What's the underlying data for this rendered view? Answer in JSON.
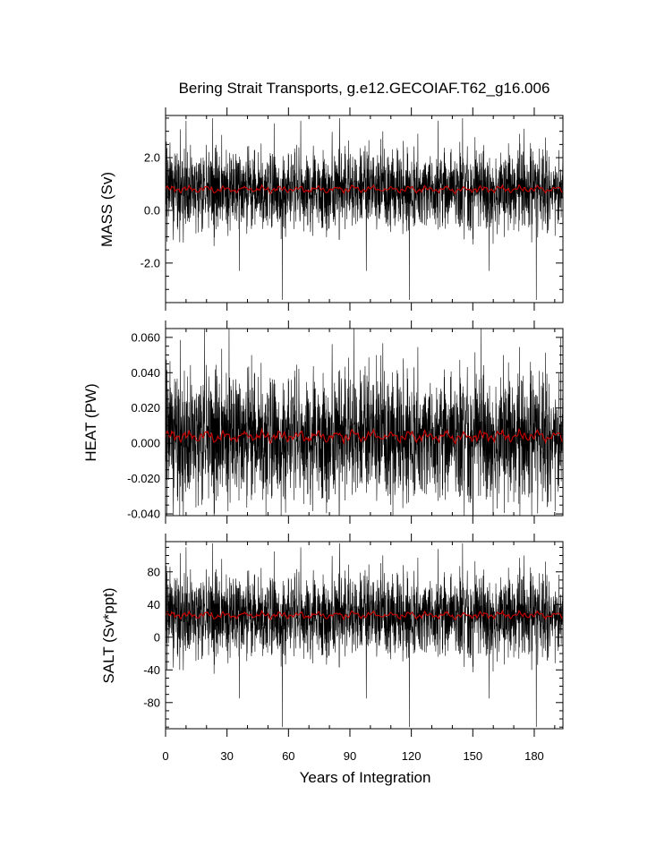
{
  "chart_data": [
    {
      "type": "line",
      "title": "Bering Strait Transports, g.e12.GECOIAF.T62_g16.006",
      "ylabel": "MASS (Sv)",
      "xlabel": "",
      "xlim": [
        0,
        194
      ],
      "ylim": [
        -3.5,
        3.6
      ],
      "yticks": [
        2.0,
        0.0,
        -2.0
      ],
      "ytick_labels": [
        "2.0",
        "0.0",
        "-2.0"
      ],
      "series": [
        {
          "color": "#000000",
          "kind": "monthly",
          "mean": 0.8,
          "amplitude": 0.75,
          "pos_spikes": [
            [
              10,
              3.4
            ],
            [
              23,
              3.5
            ],
            [
              53,
              3.3
            ],
            [
              66,
              3.4
            ],
            [
              85,
              3.5
            ],
            [
              133,
              3.4
            ],
            [
              145,
              3.5
            ],
            [
              175,
              3.1
            ]
          ],
          "neg_spikes": [
            [
              36,
              -2.3
            ],
            [
              57,
              -3.4
            ],
            [
              98,
              -2.3
            ],
            [
              119,
              -3.4
            ],
            [
              158,
              -2.3
            ],
            [
              181,
              -3.4
            ]
          ]
        },
        {
          "color": "#cc0000",
          "kind": "annual-mean",
          "mean": 0.8,
          "amplitude": 0.12
        }
      ]
    },
    {
      "type": "line",
      "ylabel": "HEAT (PW)",
      "xlabel": "",
      "xlim": [
        0,
        194
      ],
      "ylim": [
        -0.041,
        0.065
      ],
      "yticks": [
        0.06,
        0.04,
        0.02,
        0.0,
        -0.02,
        -0.04
      ],
      "ytick_labels": [
        "0.060",
        "0.040",
        "0.020",
        "0.000",
        "-0.020",
        "-0.040"
      ],
      "series": [
        {
          "color": "#000000",
          "kind": "monthly",
          "mean": 0.004,
          "amplitude": 0.018,
          "pos_spikes": [
            [
              19,
              0.065
            ],
            [
              31,
              0.065
            ],
            [
              42,
              0.05
            ],
            [
              92,
              0.065
            ],
            [
              103,
              0.05
            ],
            [
              154,
              0.065
            ],
            [
              165,
              0.05
            ],
            [
              193,
              0.06
            ]
          ],
          "neg_spikes": [
            [
              8,
              -0.033
            ],
            [
              49,
              -0.041
            ],
            [
              111,
              -0.041
            ],
            [
              173,
              -0.041
            ],
            [
              188,
              -0.033
            ]
          ]
        },
        {
          "color": "#cc0000",
          "kind": "annual-mean",
          "mean": 0.004,
          "amplitude": 0.003
        }
      ]
    },
    {
      "type": "line",
      "ylabel": "SALT (Sv*ppt)",
      "xlabel": "Years of Integration",
      "xlim": [
        0,
        194
      ],
      "ylim": [
        -112,
        117
      ],
      "xticks": [
        0,
        30,
        60,
        90,
        120,
        150,
        180
      ],
      "xtick_labels": [
        "0",
        "30",
        "60",
        "90",
        "120",
        "150",
        "180"
      ],
      "yticks": [
        80,
        40,
        0,
        -40,
        -80
      ],
      "ytick_labels": [
        "80",
        "40",
        "0",
        "-40",
        "-80"
      ],
      "series": [
        {
          "color": "#000000",
          "kind": "monthly",
          "mean": 27,
          "amplitude": 25,
          "pos_spikes": [
            [
              10,
              110
            ],
            [
              23,
              115
            ],
            [
              53,
              105
            ],
            [
              66,
              110
            ],
            [
              85,
              115
            ],
            [
              133,
              108
            ],
            [
              145,
              115
            ],
            [
              175,
              100
            ]
          ],
          "neg_spikes": [
            [
              36,
              -75
            ],
            [
              57,
              -110
            ],
            [
              98,
              -75
            ],
            [
              119,
              -110
            ],
            [
              158,
              -75
            ],
            [
              181,
              -110
            ]
          ]
        },
        {
          "color": "#cc0000",
          "kind": "annual-mean",
          "mean": 27,
          "amplitude": 4
        }
      ]
    }
  ]
}
